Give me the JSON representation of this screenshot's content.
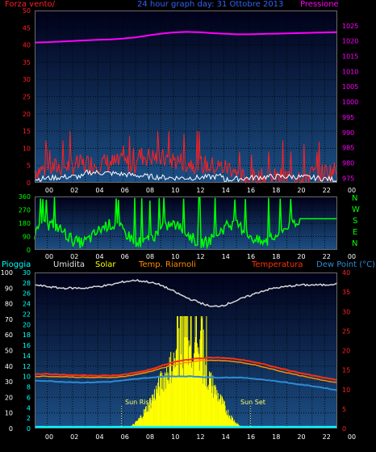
{
  "header": {
    "left_title": "Forza vento/",
    "center_title": "24 hour graph day: 31 Ottobre 2013",
    "right_title": "Pressione"
  },
  "colors": {
    "wind": "#ff2020",
    "gust_white": "#ffffff",
    "pressure": "#ff00ff",
    "direction": "#00ff00",
    "humidity": "#d8d8d8",
    "temperature": "#ff5a2a",
    "temp_riarnoli": "#ff3010",
    "dew_point": "#2e8bd6",
    "solar": "#ffff00",
    "rain": "#00ffff",
    "panel_bg_top": "#000030",
    "panel_bg_bottom": "#1a4a80"
  },
  "panel3_labels": {
    "pioggia": "Pioggia",
    "umidita": "Umidita",
    "solar": "Solar",
    "temp_riarnoli": "Temp. Riarnoli",
    "temperatura": "Temperatura",
    "dew_point": "Dew Point (°C)"
  },
  "annotations": {
    "sun_rise": "Sun Rise",
    "sun_set": "Sun Set"
  },
  "compass": [
    "N",
    "W",
    "S",
    "E",
    "N"
  ],
  "chart_data": [
    {
      "type": "line",
      "name": "wind-pressure",
      "x_ticks": [
        "00",
        "02",
        "04",
        "06",
        "08",
        "10",
        "12",
        "14",
        "16",
        "18",
        "20",
        "22",
        "00"
      ],
      "left_axis": {
        "ticks": [
          0,
          5,
          10,
          15,
          20,
          25,
          30,
          35,
          40,
          45,
          50
        ],
        "range": [
          0,
          50
        ]
      },
      "right_axis": {
        "ticks": [
          975,
          980,
          985,
          990,
          995,
          1000,
          1005,
          1010,
          1015,
          1020,
          1025
        ],
        "range": [
          973.5,
          1030
        ]
      },
      "pressure_hourly": [
        1019.5,
        1019.6,
        1019.8,
        1020.0,
        1020.2,
        1020.4,
        1020.5,
        1020.8,
        1021.2,
        1021.8,
        1022.4,
        1022.8,
        1023.0,
        1022.9,
        1022.6,
        1022.4,
        1022.2,
        1022.2,
        1022.3,
        1022.4,
        1022.5,
        1022.6,
        1022.7,
        1022.8,
        1022.9
      ]
    },
    {
      "type": "line",
      "name": "wind-direction",
      "left_axis": {
        "ticks": [
          0,
          90,
          180,
          270,
          360
        ],
        "range": [
          0,
          360
        ]
      }
    },
    {
      "type": "line",
      "name": "temperature-humidity-solar",
      "left_axis": {
        "ticks": [
          0,
          10,
          20,
          30,
          40,
          50,
          60,
          70,
          80,
          90,
          100
        ],
        "range": [
          0,
          100
        ]
      },
      "inner_axis": {
        "ticks": [
          0,
          2,
          4,
          6,
          8,
          10,
          12,
          14,
          16,
          18,
          20,
          22,
          24,
          26,
          28,
          30
        ],
        "range": [
          0,
          30
        ]
      },
      "right_axis": {
        "ticks": [
          0,
          5,
          10,
          15,
          20,
          25,
          30,
          35,
          40
        ],
        "range": [
          0,
          40
        ]
      },
      "humidity_hourly": [
        92,
        91,
        90,
        90,
        90,
        91,
        92,
        94,
        95,
        94,
        92,
        88,
        84,
        81,
        78,
        79,
        82,
        85,
        88,
        90,
        91,
        92,
        92,
        92,
        93
      ],
      "temperature_hourly": [
        14.0,
        14.0,
        13.8,
        13.7,
        13.6,
        13.6,
        13.6,
        13.8,
        14.3,
        15.0,
        16.0,
        17.0,
        17.6,
        18.0,
        18.2,
        18.1,
        17.8,
        17.3,
        16.6,
        15.8,
        15.0,
        14.3,
        13.6,
        13.0,
        12.4
      ],
      "temp_riarnoli_hourly": [
        13.4,
        13.4,
        13.3,
        13.2,
        13.1,
        13.1,
        13.1,
        13.3,
        13.8,
        14.5,
        15.4,
        16.3,
        16.9,
        17.3,
        17.5,
        17.4,
        17.1,
        16.6,
        15.9,
        15.1,
        14.3,
        13.6,
        12.9,
        12.3,
        11.8
      ],
      "dew_point_hourly": [
        12.3,
        12.2,
        12.0,
        11.9,
        11.8,
        11.9,
        12.0,
        12.3,
        12.7,
        13.0,
        13.3,
        13.4,
        13.4,
        13.3,
        13.1,
        13.1,
        13.1,
        12.9,
        12.6,
        12.2,
        11.8,
        11.3,
        10.9,
        10.4,
        9.8
      ],
      "solar_peak_hour": 12.5,
      "sunrise_hour": 6.9,
      "sunset_hour": 17.1
    }
  ]
}
